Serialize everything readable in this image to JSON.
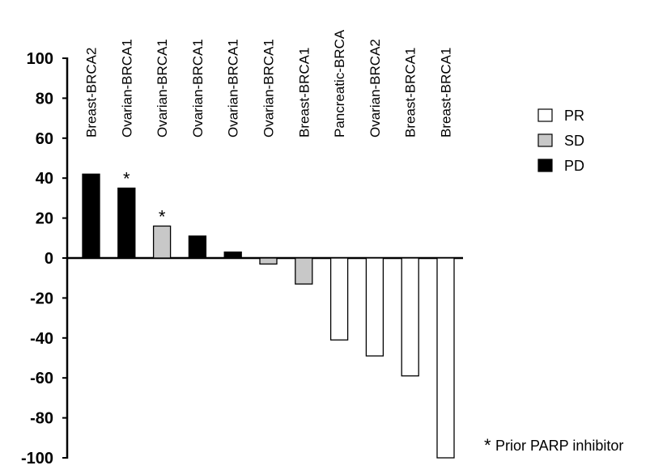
{
  "chart_data": {
    "type": "bar",
    "title": "",
    "xlabel": "",
    "ylabel": "",
    "ylim": [
      -100,
      100
    ],
    "yticks": [
      "100",
      "80",
      "60",
      "40",
      "20",
      "0",
      "-20",
      "-40",
      "-60",
      "-80",
      "-100"
    ],
    "ytick_values": [
      100,
      80,
      60,
      40,
      20,
      0,
      -20,
      -40,
      -60,
      -80,
      -100
    ],
    "categories": [
      "Breast-BRCA2",
      "Ovarian-BRCA1",
      "Ovarian-BRCA1",
      "Ovarian-BRCA1",
      "Ovarian-BRCA1",
      "Ovarian-BRCA1",
      "Breast-BRCA1",
      "Pancreatic-BRCA",
      "Ovarian-BRCA2",
      "Breast-BRCA1",
      "Breast-BRCA1"
    ],
    "values": [
      42,
      35,
      16,
      11,
      3,
      -3,
      -13,
      -41,
      -49,
      -59,
      -100
    ],
    "response": [
      "PD",
      "PD",
      "SD",
      "PD",
      "PD",
      "SD",
      "SD",
      "PR",
      "PR",
      "PR",
      "PR"
    ],
    "prior_parp": [
      false,
      true,
      true,
      false,
      false,
      false,
      false,
      false,
      false,
      false,
      false
    ],
    "star_symbol": "*",
    "legend": [
      {
        "key": "PR",
        "label": "PR",
        "color": "#ffffff"
      },
      {
        "key": "SD",
        "label": "SD",
        "color": "#c8c8c8"
      },
      {
        "key": "PD",
        "label": "PD",
        "color": "#000000"
      }
    ],
    "legend_position": "right",
    "annotation": {
      "star": "*",
      "text": "Prior PARP inhibitor"
    }
  }
}
